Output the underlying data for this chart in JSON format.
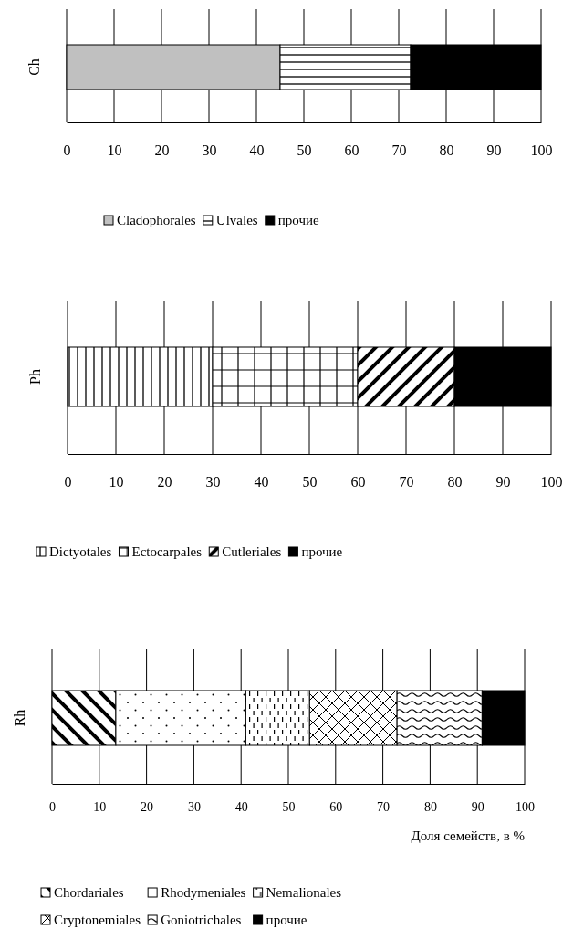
{
  "chart_data": [
    {
      "type": "bar",
      "orientation": "horizontal",
      "stacked": true,
      "ylabel": "Ch",
      "categories": [
        null
      ],
      "xlim": [
        0,
        100
      ],
      "xticks": [
        0,
        10,
        20,
        30,
        40,
        50,
        60,
        70,
        80,
        90,
        100
      ],
      "grid": "x",
      "legend": "bottom",
      "series": [
        {
          "name": "Cladophorales",
          "color": "#c0c0c0",
          "values": [
            45
          ]
        },
        {
          "name": "Ulvales",
          "color": "#000000",
          "values": [
            27.5
          ]
        },
        {
          "name": "прочие",
          "color": "#000000",
          "values": [
            27.5
          ]
        }
      ]
    },
    {
      "type": "bar",
      "orientation": "horizontal",
      "stacked": true,
      "ylabel": "Ph",
      "categories": [
        null
      ],
      "xlim": [
        0,
        100
      ],
      "xticks": [
        0,
        10,
        20,
        30,
        40,
        50,
        60,
        70,
        80,
        90,
        100
      ],
      "grid": "x",
      "legend": "bottom",
      "series": [
        {
          "name": "Dictyotales",
          "color": "#000000",
          "values": [
            30
          ]
        },
        {
          "name": "Ectocarpales",
          "color": "#000000",
          "values": [
            30
          ]
        },
        {
          "name": "Cutleriales",
          "color": "#000000",
          "values": [
            20
          ]
        },
        {
          "name": "прочие",
          "color": "#000000",
          "values": [
            20
          ]
        }
      ]
    },
    {
      "type": "bar",
      "orientation": "horizontal",
      "stacked": true,
      "ylabel": "Rh",
      "xlabel": "Доля семейств, в %",
      "categories": [
        null
      ],
      "xlim": [
        0,
        100
      ],
      "xticks": [
        0,
        10,
        20,
        30,
        40,
        50,
        60,
        70,
        80,
        90,
        100
      ],
      "grid": "x",
      "legend": "bottom",
      "series": [
        {
          "name": "Chordariales",
          "color": "#000000",
          "values": [
            13.5
          ]
        },
        {
          "name": "Rhodymeniales",
          "color": "#000000",
          "values": [
            27.5
          ]
        },
        {
          "name": "Nemalionales",
          "color": "#000000",
          "values": [
            13.5
          ]
        },
        {
          "name": "Cryptonemiales",
          "color": "#000000",
          "values": [
            18.5
          ]
        },
        {
          "name": "Goniotrichales",
          "color": "#000000",
          "values": [
            18
          ]
        },
        {
          "name": "прочие",
          "color": "#000000",
          "values": [
            9
          ]
        }
      ]
    }
  ]
}
